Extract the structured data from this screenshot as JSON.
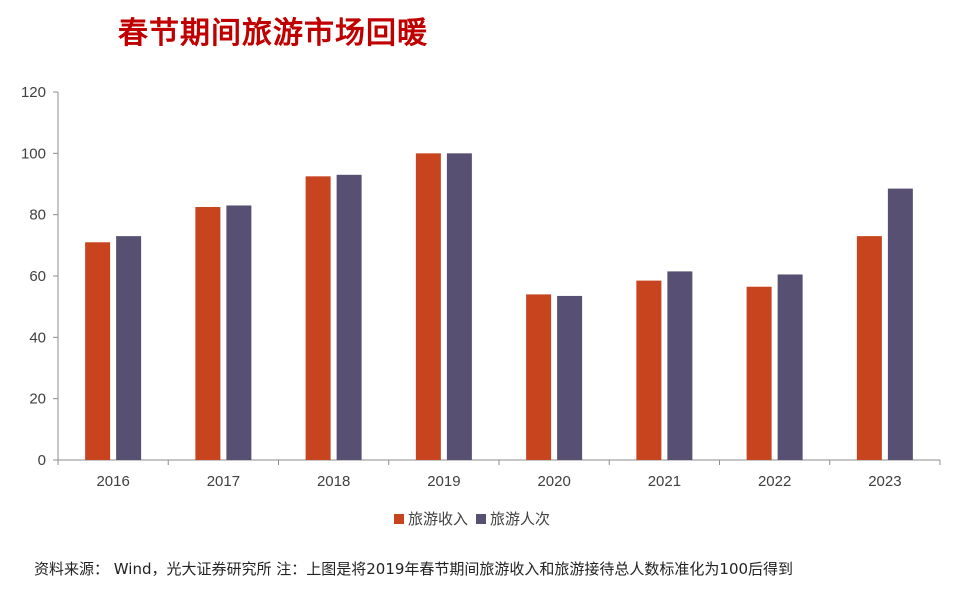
{
  "title": "春节期间旅游市场回暖",
  "source": "资料来源： Wind，光大证券研究所 注：上图是将2019年春节期间旅游收入和旅游接待总人数标准化为100后得到",
  "chart_data": {
    "type": "bar",
    "categories": [
      "2016",
      "2017",
      "2018",
      "2019",
      "2020",
      "2021",
      "2022",
      "2023"
    ],
    "series": [
      {
        "name": "旅游收入",
        "color": "#c8441f",
        "values": [
          71,
          82.5,
          92.5,
          100,
          54,
          58.5,
          56.5,
          73
        ]
      },
      {
        "name": "旅游人次",
        "color": "#575072",
        "values": [
          73,
          83,
          93,
          100,
          53.5,
          61.5,
          60.5,
          88.5
        ]
      }
    ],
    "ylim": [
      0,
      120
    ],
    "yticks": [
      0,
      20,
      40,
      60,
      80,
      100,
      120
    ],
    "grid": false,
    "legend": "bottom-center"
  }
}
